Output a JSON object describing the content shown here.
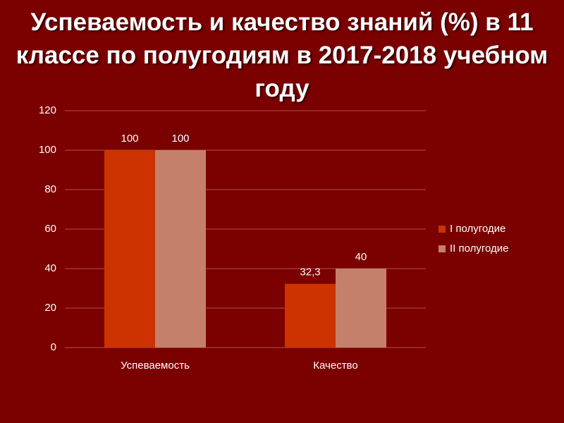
{
  "chart_data": {
    "type": "bar",
    "title": "Успеваемость и качество знаний (%) в 11 классе по полугодиям в 2017-2018 учебном году",
    "categories": [
      "Успеваемость",
      "Качество"
    ],
    "series": [
      {
        "name": "I полугодие",
        "color": "#cc3300",
        "values": [
          100,
          32.3
        ],
        "value_labels": [
          "100",
          "32,3"
        ]
      },
      {
        "name": "II полугодие",
        "color": "#c4806a",
        "values": [
          100,
          40
        ]
      }
    ],
    "ylim": [
      0,
      120
    ],
    "yticks": [
      0,
      20,
      40,
      60,
      80,
      100,
      120
    ],
    "grid": true,
    "legend": "right"
  }
}
